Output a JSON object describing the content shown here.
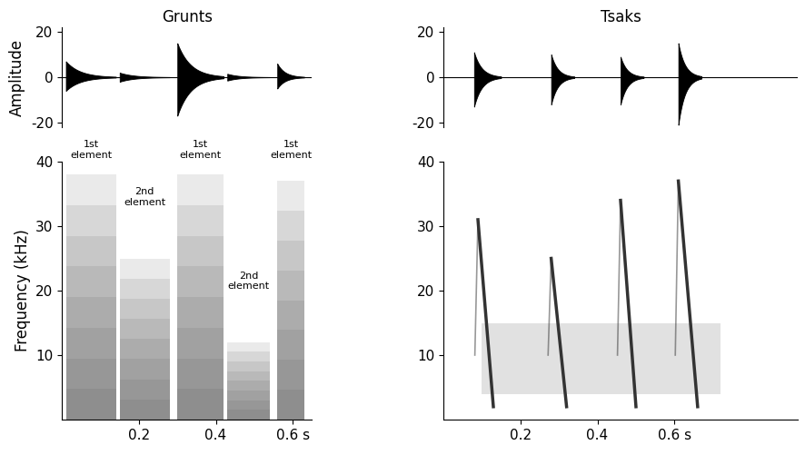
{
  "chart_data": [
    {
      "type": "waveform",
      "title": "Grunts",
      "y_label": "Amplitude",
      "xlim": [
        0,
        0.65
      ],
      "ylim": [
        -22,
        22
      ],
      "yticks": [
        -20,
        0,
        20
      ],
      "tick_labels": "y",
      "color": "#000000",
      "bursts": [
        {
          "start": 0.01,
          "end": 0.14,
          "max": 7,
          "min": -6
        },
        {
          "start": 0.15,
          "end": 0.28,
          "max": 2,
          "min": -2
        },
        {
          "start": 0.3,
          "end": 0.42,
          "max": 15,
          "min": -17
        },
        {
          "start": 0.43,
          "end": 0.54,
          "max": 1.5,
          "min": -1.5
        },
        {
          "start": 0.56,
          "end": 0.63,
          "max": 6,
          "min": -5
        }
      ]
    },
    {
      "type": "waveform",
      "title": "Tsaks",
      "xlim": [
        0,
        0.92
      ],
      "ylim": [
        -22,
        22
      ],
      "yticks": [
        -20,
        0,
        20
      ],
      "tick_labels": "y",
      "color": "#000000",
      "bursts": [
        {
          "start": 0.08,
          "end": 0.15,
          "max": 11,
          "min": -13
        },
        {
          "start": 0.28,
          "end": 0.34,
          "max": 10,
          "min": -12
        },
        {
          "start": 0.46,
          "end": 0.52,
          "max": 9,
          "min": -12
        },
        {
          "start": 0.61,
          "end": 0.67,
          "max": 15,
          "min": -21
        }
      ]
    },
    {
      "type": "spectrogram",
      "y_label": "Frequency (kHz)",
      "xlim": [
        0,
        0.65
      ],
      "xticks": [
        0.2,
        0.4,
        {
          "value": 0.6,
          "label": "0.6 s"
        }
      ],
      "ylim": [
        0,
        40
      ],
      "yticks": [
        10,
        20,
        30,
        40
      ],
      "color": "#555555",
      "elements": [
        {
          "label": "1st element",
          "start": 0.01,
          "end": 0.14,
          "max_freq": 38
        },
        {
          "label": "2nd element",
          "start": 0.15,
          "end": 0.28,
          "max_freq": 25
        },
        {
          "label": "1st element",
          "start": 0.3,
          "end": 0.42,
          "max_freq": 38
        },
        {
          "label": "2nd element",
          "start": 0.43,
          "end": 0.54,
          "max_freq": 12
        },
        {
          "label": "1st element",
          "start": 0.56,
          "end": 0.63,
          "max_freq": 37
        }
      ]
    },
    {
      "type": "spectrogram",
      "xlim": [
        0,
        0.92
      ],
      "xticks": [
        0.2,
        0.4,
        {
          "value": 0.6,
          "label": "0.6 s"
        }
      ],
      "ylim": [
        0,
        40
      ],
      "yticks": [
        10,
        20,
        30,
        40
      ],
      "color": "#333333",
      "noise_band": {
        "start": 0.1,
        "end": 0.72,
        "low_freq": 4,
        "high_freq": 15
      },
      "calls": [
        {
          "onset": 0.09,
          "offset": 0.13,
          "peak_freq": 31,
          "end_freq": 2
        },
        {
          "onset": 0.28,
          "offset": 0.32,
          "peak_freq": 25,
          "end_freq": 2
        },
        {
          "onset": 0.46,
          "offset": 0.5,
          "peak_freq": 34,
          "end_freq": 2
        },
        {
          "onset": 0.61,
          "offset": 0.66,
          "peak_freq": 37,
          "end_freq": 2
        }
      ]
    }
  ]
}
